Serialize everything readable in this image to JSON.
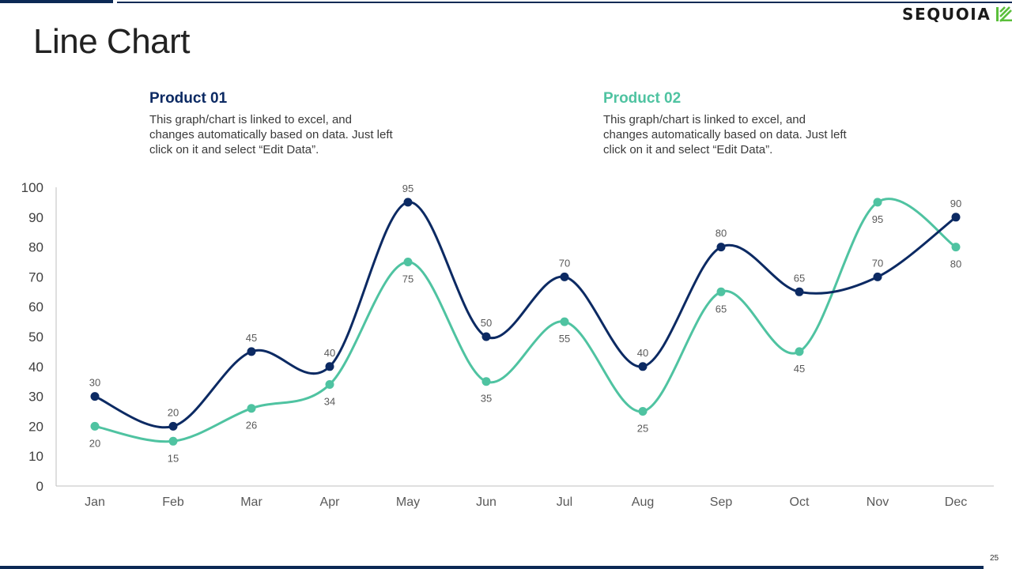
{
  "slide": {
    "title": "Line Chart",
    "page_number": "25",
    "logo_text": "SEQUOIA"
  },
  "legend": [
    {
      "name": "Product 01",
      "color": "#0c2a63",
      "description": "This graph/chart is linked to excel, and changes automatically based on data. Just left click on it and select “Edit Data”."
    },
    {
      "name": "Product 02",
      "color": "#4fc3a1",
      "description": "This graph/chart is linked to excel, and changes automatically based on data. Just left click on it and select “Edit Data”."
    }
  ],
  "chart_data": {
    "type": "line",
    "title": "",
    "xlabel": "",
    "ylabel": "",
    "categories": [
      "Jan",
      "Feb",
      "Mar",
      "Apr",
      "May",
      "Jun",
      "Jul",
      "Aug",
      "Sep",
      "Oct",
      "Nov",
      "Dec"
    ],
    "ylim": [
      0,
      100
    ],
    "yticks": [
      0,
      10,
      20,
      30,
      40,
      50,
      60,
      70,
      80,
      90,
      100
    ],
    "smooth": true,
    "grid": false,
    "series": [
      {
        "name": "Product 01",
        "color": "#0c2a63",
        "values": [
          30,
          20,
          45,
          40,
          95,
          50,
          70,
          40,
          80,
          65,
          70,
          90
        ],
        "label_position": "above"
      },
      {
        "name": "Product 02",
        "color": "#4fc3a1",
        "values": [
          20,
          15,
          26,
          34,
          75,
          35,
          55,
          25,
          65,
          45,
          95,
          80
        ],
        "label_position": "below"
      }
    ]
  }
}
